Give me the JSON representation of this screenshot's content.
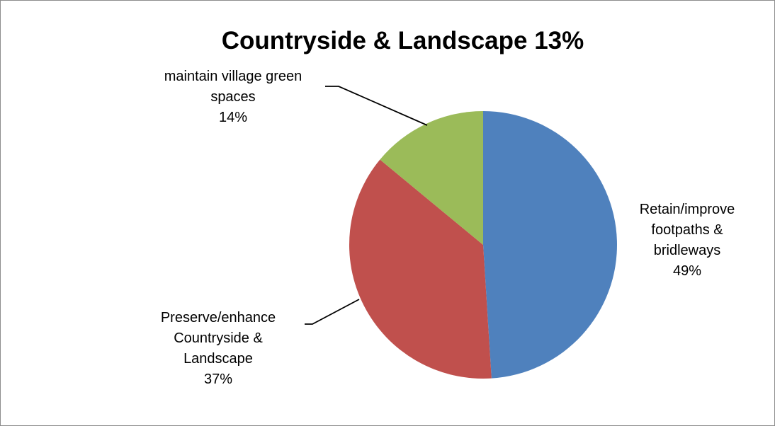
{
  "chart_data": {
    "type": "pie",
    "title": "Countryside & Landscape 13%",
    "categories": [
      "Retain/improve footpaths & bridleways",
      "Preserve/enhance Countryside & Landscape",
      "maintain village green spaces"
    ],
    "values": [
      49,
      37,
      14
    ],
    "unit": "%",
    "colors": [
      "#4f81bd",
      "#c0504d",
      "#9bbb59"
    ],
    "legend": "none",
    "labels": [
      {
        "lines": [
          "Retain/improve",
          "footpaths &",
          "bridleways",
          "49%"
        ]
      },
      {
        "lines": [
          "Preserve/enhance",
          "Countryside &",
          "Landscape",
          "37%"
        ]
      },
      {
        "lines": [
          "maintain village green",
          "spaces",
          "14%"
        ]
      }
    ]
  }
}
